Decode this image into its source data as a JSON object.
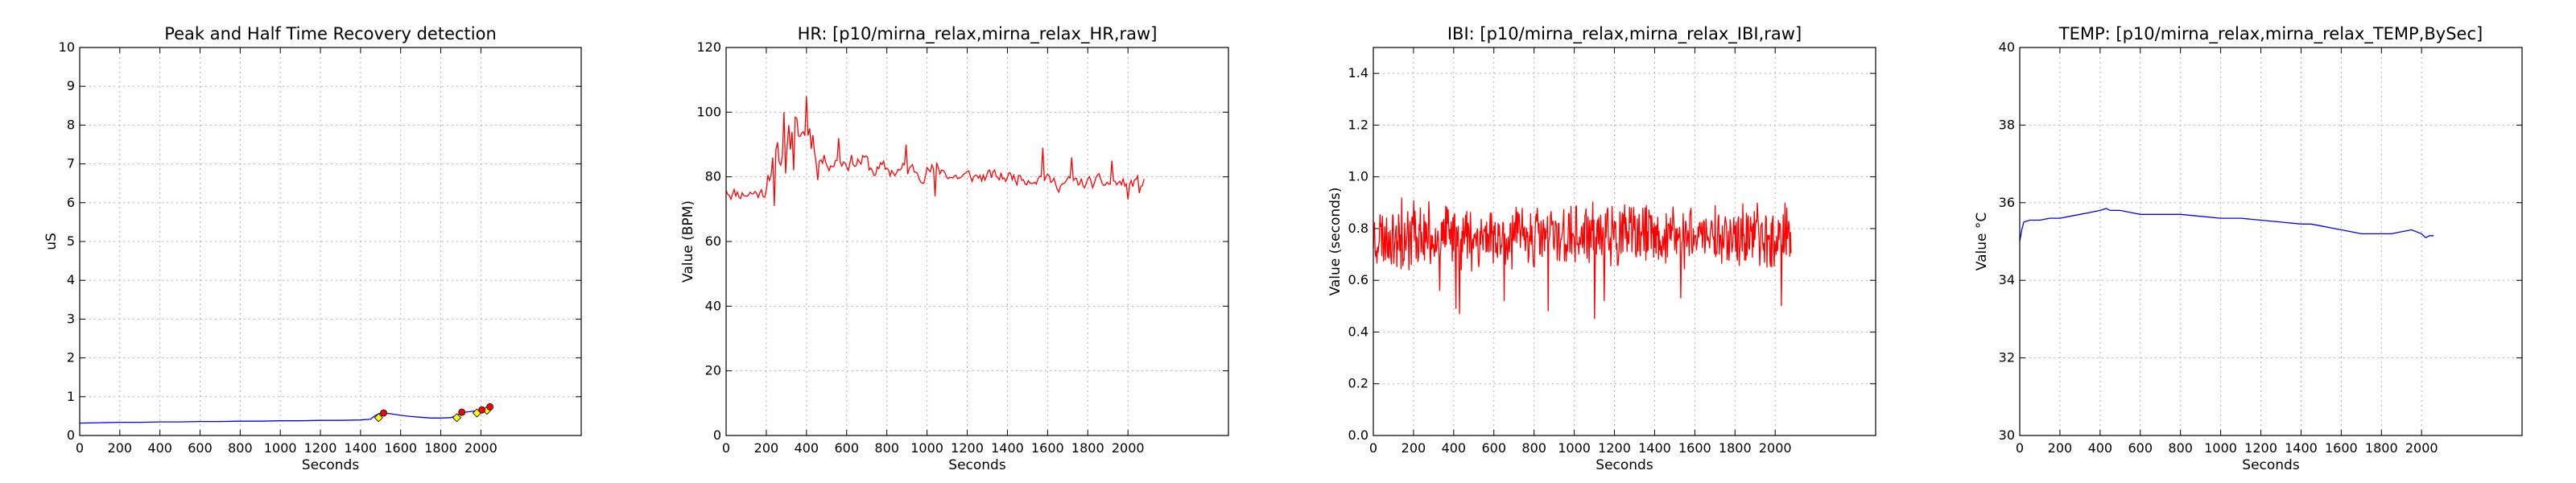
{
  "chart_data": [
    {
      "type": "line",
      "title": "Peak and Half Time Recovery detection",
      "xlabel": "Seconds",
      "ylabel": "uS",
      "xlim": [
        0,
        2500
      ],
      "ylim": [
        0,
        10
      ],
      "xticks": [
        0,
        200,
        400,
        600,
        800,
        1000,
        1200,
        1400,
        1600,
        1800,
        2000
      ],
      "yticks": [
        0,
        1,
        2,
        3,
        4,
        5,
        6,
        7,
        8,
        9,
        10
      ],
      "grid": true,
      "series": [
        {
          "color": "#0000ff",
          "x": [
            0,
            100,
            200,
            300,
            400,
            500,
            600,
            700,
            800,
            900,
            1000,
            1100,
            1200,
            1300,
            1400,
            1450,
            1470,
            1490,
            1510,
            1550,
            1600,
            1650,
            1700,
            1750,
            1800,
            1850,
            1880,
            1900,
            1920,
            1950,
            1980,
            2000,
            2020,
            2040,
            2060
          ],
          "y": [
            0.32,
            0.33,
            0.34,
            0.34,
            0.35,
            0.35,
            0.36,
            0.36,
            0.37,
            0.37,
            0.38,
            0.38,
            0.39,
            0.39,
            0.4,
            0.42,
            0.5,
            0.56,
            0.58,
            0.56,
            0.52,
            0.49,
            0.47,
            0.45,
            0.45,
            0.46,
            0.52,
            0.58,
            0.6,
            0.62,
            0.64,
            0.66,
            0.69,
            0.72,
            0.7
          ]
        }
      ],
      "peak_markers": {
        "color": "#ff0000",
        "x": [
          1515,
          1905,
          2005,
          2045
        ],
        "y": [
          0.58,
          0.6,
          0.66,
          0.74
        ]
      },
      "recovery_markers": {
        "color": "#ffff00",
        "x": [
          1490,
          1880,
          1980,
          2030
        ],
        "y": [
          0.46,
          0.46,
          0.58,
          0.65
        ]
      }
    },
    {
      "type": "line",
      "title": "HR: [p10/mirna_relax,mirna_relax_HR,raw]",
      "xlabel": "Seconds",
      "ylabel": "Value (BPM)",
      "xlim": [
        0,
        2500
      ],
      "ylim": [
        0,
        120
      ],
      "xticks": [
        0,
        200,
        400,
        600,
        800,
        1000,
        1200,
        1400,
        1600,
        1800,
        2000
      ],
      "yticks": [
        0,
        20,
        40,
        60,
        80,
        100,
        120
      ],
      "grid": true,
      "series": [
        {
          "color": "#ff0000",
          "generated": {
            "x_start": 0,
            "x_end": 2080,
            "step": 8,
            "base": 78,
            "seed": 11
          },
          "segments": [
            {
              "x0": 0,
              "x1": 200,
              "base": 75,
              "noise": 4
            },
            {
              "x0": 200,
              "x1": 300,
              "base": 85,
              "noise": 9
            },
            {
              "x0": 300,
              "x1": 440,
              "base": 93,
              "noise": 10
            },
            {
              "x0": 440,
              "x1": 700,
              "base": 85,
              "noise": 5
            },
            {
              "x0": 700,
              "x1": 1100,
              "base": 82,
              "noise": 5
            },
            {
              "x0": 1100,
              "x1": 1600,
              "base": 80,
              "noise": 4
            },
            {
              "x0": 1600,
              "x1": 2080,
              "base": 78,
              "noise": 4
            }
          ],
          "spikes": [
            [
              240,
              71
            ],
            [
              290,
              100
            ],
            [
              310,
              96
            ],
            [
              340,
              82
            ],
            [
              400,
              105
            ],
            [
              420,
              95
            ],
            [
              460,
              79
            ],
            [
              560,
              92
            ],
            [
              900,
              90
            ],
            [
              1040,
              74
            ],
            [
              1580,
              89
            ],
            [
              1720,
              86
            ],
            [
              1920,
              85
            ],
            [
              2000,
              73
            ],
            [
              2060,
              75
            ]
          ]
        }
      ]
    },
    {
      "type": "line",
      "title": "IBI: [p10/mirna_relax,mirna_relax_IBI,raw]",
      "xlabel": "Seconds",
      "ylabel": "Value (seconds)",
      "xlim": [
        0,
        2500
      ],
      "ylim": [
        0.0,
        1.5
      ],
      "xticks": [
        0,
        200,
        400,
        600,
        800,
        1000,
        1200,
        1400,
        1600,
        1800,
        2000
      ],
      "yticks": [
        0.0,
        0.2,
        0.4,
        0.6,
        0.8,
        1.0,
        1.2,
        1.4
      ],
      "ytick_labels": [
        "0.0",
        "0.2",
        "0.4",
        "0.6",
        "0.8",
        "1.0",
        "1.2",
        "1.4"
      ],
      "grid": true,
      "series": [
        {
          "color": "#ff0000",
          "generated": {
            "x_start": 0,
            "x_end": 2080,
            "step": 3,
            "base": 0.77,
            "noise": 0.13,
            "seed": 23
          },
          "spikes": [
            [
              140,
              0.92
            ],
            [
              200,
              0.91
            ],
            [
              330,
              0.56
            ],
            [
              410,
              0.49
            ],
            [
              430,
              0.47
            ],
            [
              650,
              0.52
            ],
            [
              870,
              0.48
            ],
            [
              1100,
              0.45
            ],
            [
              1150,
              0.52
            ],
            [
              1530,
              0.53
            ],
            [
              1580,
              0.88
            ],
            [
              1700,
              0.89
            ],
            [
              2030,
              0.5
            ],
            [
              2050,
              0.9
            ]
          ]
        }
      ]
    },
    {
      "type": "line",
      "title": "TEMP: [p10/mirna_relax,mirna_relax_TEMP,BySec]",
      "xlabel": "Seconds",
      "ylabel": "Value °C",
      "xlim": [
        0,
        2500
      ],
      "ylim": [
        30,
        40
      ],
      "xticks": [
        0,
        200,
        400,
        600,
        800,
        1000,
        1200,
        1400,
        1600,
        1800,
        2000
      ],
      "yticks": [
        30,
        32,
        34,
        36,
        38,
        40
      ],
      "grid": true,
      "series": [
        {
          "color": "#0000ff",
          "x": [
            0,
            10,
            20,
            50,
            100,
            150,
            200,
            250,
            300,
            350,
            400,
            430,
            450,
            500,
            550,
            600,
            700,
            800,
            900,
            1000,
            1100,
            1200,
            1300,
            1400,
            1450,
            1500,
            1550,
            1600,
            1650,
            1700,
            1750,
            1800,
            1850,
            1900,
            1950,
            2000,
            2020,
            2040,
            2060
          ],
          "y": [
            35.0,
            35.3,
            35.5,
            35.55,
            35.55,
            35.6,
            35.6,
            35.65,
            35.7,
            35.75,
            35.8,
            35.85,
            35.8,
            35.8,
            35.75,
            35.7,
            35.7,
            35.7,
            35.65,
            35.6,
            35.6,
            35.55,
            35.5,
            35.45,
            35.45,
            35.4,
            35.35,
            35.3,
            35.25,
            35.2,
            35.2,
            35.2,
            35.2,
            35.25,
            35.3,
            35.2,
            35.1,
            35.15,
            35.15
          ]
        }
      ]
    }
  ]
}
